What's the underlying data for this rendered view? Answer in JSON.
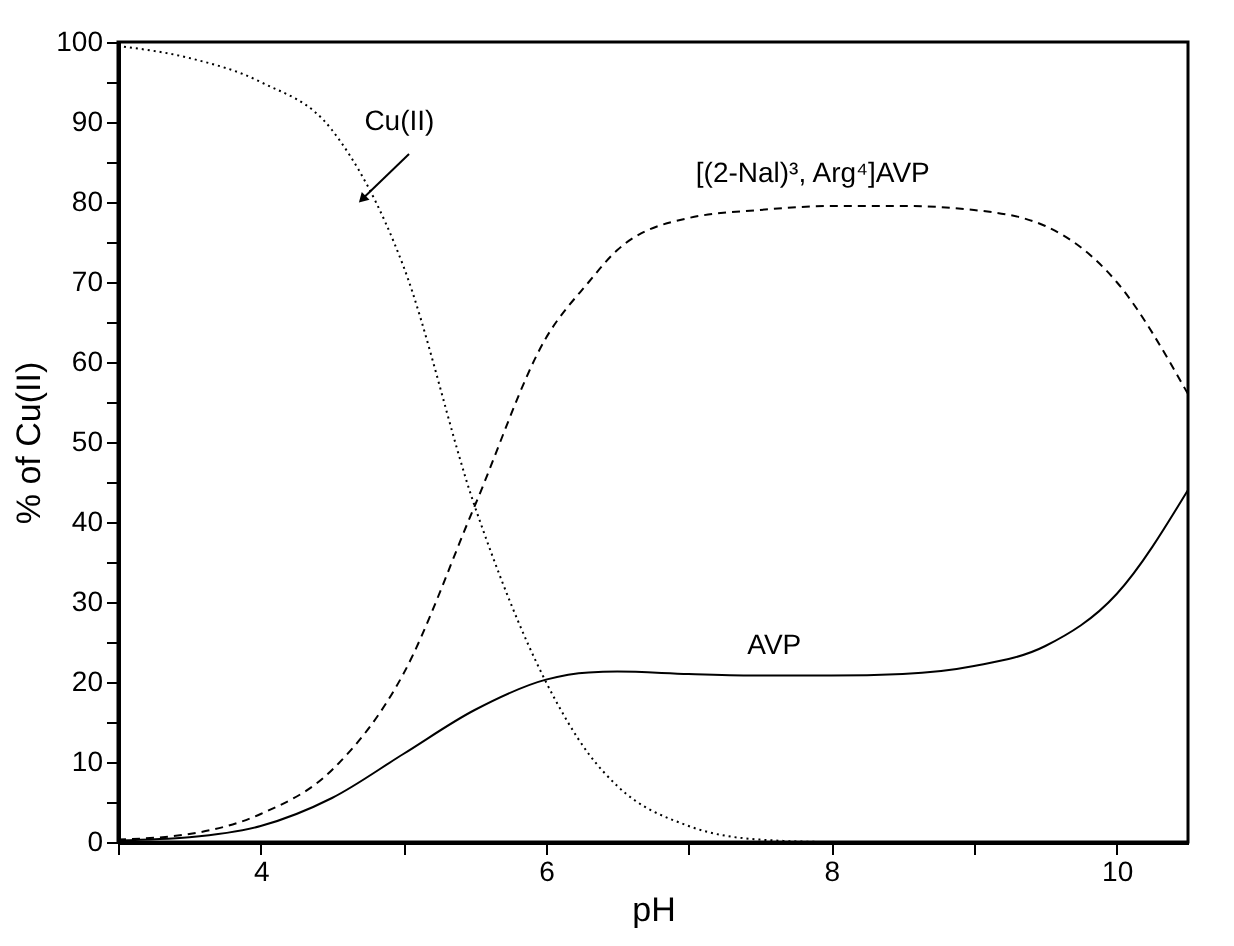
{
  "chart_data": {
    "type": "line",
    "xlabel": "pH",
    "ylabel": "% of Cu(II)",
    "x": [
      3,
      3.5,
      4,
      4.5,
      5,
      5.5,
      6,
      6.3,
      6.5,
      7,
      7.5,
      8,
      8.5,
      9,
      9.5,
      10,
      10.5
    ],
    "series": [
      {
        "color": "#000000",
        "line_style": "dotted",
        "values": [
          99.5,
          98,
          95,
          89,
          72,
          42,
          20,
          11,
          7,
          2,
          0.3,
          0,
          0,
          0,
          0,
          0,
          0
        ]
      },
      {
        "color": "#000000",
        "line_style": "dashed",
        "values": [
          0.3,
          1,
          3.5,
          9,
          21,
          42,
          63,
          70,
          74,
          78,
          79,
          79.5,
          79.5,
          79,
          77,
          70,
          56
        ]
      },
      {
        "color": "#000000",
        "line_style": "solid",
        "values": [
          0.2,
          0.6,
          2,
          5.5,
          11,
          16.5,
          20.3,
          21.2,
          21.3,
          21,
          20.8,
          20.8,
          21,
          22,
          24.5,
          31,
          44
        ]
      }
    ],
    "annotations": [
      {
        "text": "Cu(II)",
        "x": 4.72,
        "y": 80.5
      },
      {
        "text": "[(2-Nal)³, Arg⁴]AVP",
        "x": 7.87,
        "y": 80
      },
      {
        "text": "AVP",
        "x": 7.6,
        "y": 21
      }
    ],
    "xlim": [
      3,
      10.5
    ],
    "ylim": [
      0,
      100
    ],
    "xticks": [
      {
        "value": 3,
        "label": null
      },
      4,
      {
        "value": 5,
        "label": null
      },
      6,
      {
        "value": 7,
        "label": null
      },
      8,
      {
        "value": 9,
        "label": null
      },
      10
    ],
    "yticks": [
      0,
      {
        "value": 5,
        "label": null
      },
      10,
      {
        "value": 15,
        "label": null
      },
      20,
      {
        "value": 25,
        "label": null
      },
      30,
      {
        "value": 35,
        "label": null
      },
      40,
      {
        "value": 45,
        "label": null
      },
      50,
      {
        "value": 55,
        "label": null
      },
      60,
      {
        "value": 65,
        "label": null
      },
      70,
      {
        "value": 75,
        "label": null
      },
      80,
      {
        "value": 85,
        "label": null
      },
      90,
      {
        "value": 95,
        "label": null
      },
      100
    ],
    "grid": false,
    "legend": false,
    "marker": "none"
  }
}
